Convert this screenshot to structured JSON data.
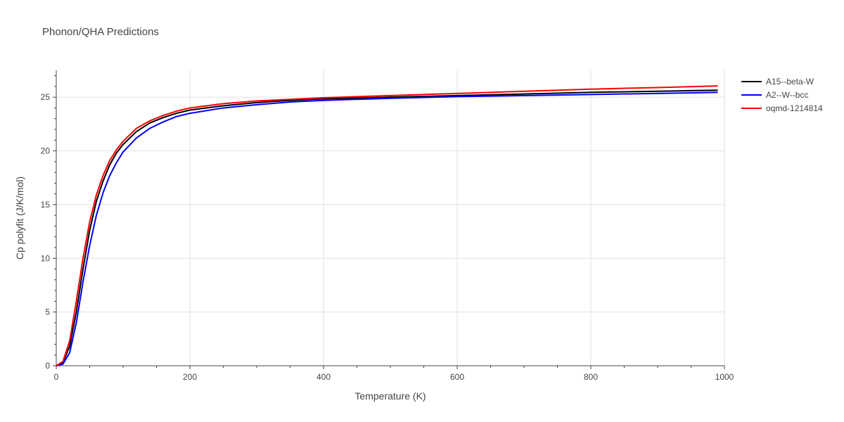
{
  "chart_data": {
    "type": "line",
    "title": "Phonon/QHA Predictions",
    "xlabel": "Temperature (K)",
    "ylabel": "Cp polyfit (J/K/mol)",
    "xlim": [
      0,
      1000
    ],
    "ylim": [
      0,
      27.5
    ],
    "xticks": [
      0,
      200,
      400,
      600,
      800,
      1000
    ],
    "xtick_labels": [
      "0",
      "200",
      "400",
      "600",
      "800",
      "1000"
    ],
    "yticks": [
      0,
      5,
      10,
      15,
      20,
      25
    ],
    "ytick_labels": [
      "0",
      "5",
      "10",
      "15",
      "20",
      "25"
    ],
    "grid": true,
    "legend_position": "top-right",
    "series": [
      {
        "name": "A15--beta-W",
        "color": "#000000",
        "x": [
          0,
          10,
          20,
          30,
          40,
          50,
          60,
          70,
          80,
          90,
          100,
          120,
          140,
          160,
          180,
          200,
          250,
          300,
          350,
          400,
          500,
          600,
          700,
          800,
          900,
          990
        ],
        "y": [
          0,
          0.3,
          1.8,
          5.0,
          9.0,
          12.6,
          15.3,
          17.2,
          18.7,
          19.8,
          20.6,
          21.8,
          22.6,
          23.1,
          23.5,
          23.8,
          24.2,
          24.5,
          24.7,
          24.85,
          25.0,
          25.15,
          25.3,
          25.45,
          25.55,
          25.65
        ]
      },
      {
        "name": "A2--W--bcc",
        "color": "#0000ff",
        "x": [
          0,
          10,
          20,
          30,
          40,
          50,
          60,
          70,
          80,
          90,
          100,
          120,
          140,
          160,
          180,
          200,
          250,
          300,
          350,
          400,
          500,
          600,
          700,
          800,
          900,
          990
        ],
        "y": [
          0,
          0.15,
          1.2,
          4.0,
          7.8,
          11.2,
          14.0,
          16.1,
          17.7,
          18.9,
          19.9,
          21.2,
          22.1,
          22.7,
          23.2,
          23.5,
          24.0,
          24.3,
          24.55,
          24.7,
          24.9,
          25.05,
          25.15,
          25.25,
          25.35,
          25.45
        ]
      },
      {
        "name": "oqmd-1214814",
        "color": "#ff0000",
        "x": [
          0,
          10,
          20,
          30,
          40,
          50,
          60,
          70,
          80,
          90,
          100,
          120,
          140,
          160,
          180,
          200,
          250,
          300,
          350,
          400,
          500,
          600,
          700,
          800,
          900,
          990
        ],
        "y": [
          0,
          0.4,
          2.3,
          6.0,
          10.0,
          13.4,
          15.9,
          17.7,
          19.1,
          20.1,
          20.9,
          22.1,
          22.8,
          23.3,
          23.7,
          24.0,
          24.4,
          24.65,
          24.8,
          24.95,
          25.15,
          25.35,
          25.55,
          25.75,
          25.9,
          26.05
        ]
      }
    ]
  }
}
